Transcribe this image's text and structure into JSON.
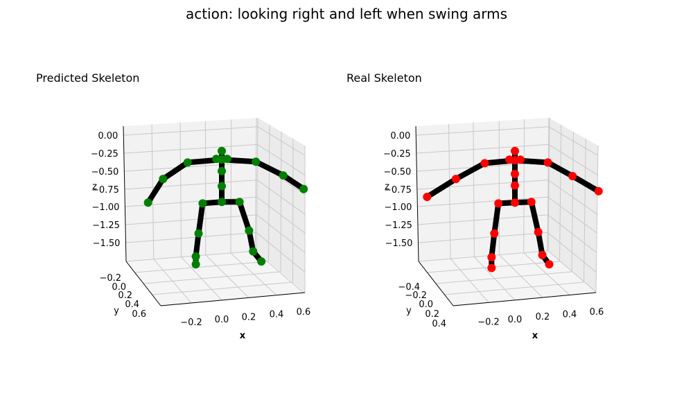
{
  "title": "action: looking right and left when swing arms",
  "chart_data": [
    {
      "type": "scatter",
      "subtype": "3d-skeleton",
      "title": "Predicted Skeleton",
      "xlabel": "x",
      "ylabel": "y",
      "zlabel": "z",
      "x_ticks": [
        "−0.2",
        "0.0",
        "0.2",
        "0.4",
        "0.6"
      ],
      "y_ticks": [
        "−0.2",
        "0.0",
        "0.2",
        "0.4",
        "0.6"
      ],
      "z_ticks": [
        "0.00",
        "−0.25",
        "−0.50",
        "−0.75",
        "−1.00",
        "−1.25",
        "−1.50"
      ],
      "point_color": "#008000",
      "bone_color": "#000000",
      "grid": true,
      "joints": [
        {
          "x": 0.0,
          "y": 0.2,
          "z": -0.22
        },
        {
          "x": 0.0,
          "y": 0.2,
          "z": -0.34
        },
        {
          "x": -0.04,
          "y": 0.2,
          "z": -0.33
        },
        {
          "x": 0.04,
          "y": 0.2,
          "z": -0.33
        },
        {
          "x": 0.0,
          "y": 0.2,
          "z": -0.5
        },
        {
          "x": 0.0,
          "y": 0.2,
          "z": -0.71
        },
        {
          "x": 0.0,
          "y": 0.2,
          "z": -0.93
        },
        {
          "x": -0.25,
          "y": 0.2,
          "z": -0.38
        },
        {
          "x": -0.43,
          "y": 0.2,
          "z": -0.61
        },
        {
          "x": -0.54,
          "y": 0.2,
          "z": -0.94
        },
        {
          "x": 0.25,
          "y": 0.2,
          "z": -0.37
        },
        {
          "x": 0.45,
          "y": 0.2,
          "z": -0.56
        },
        {
          "x": 0.6,
          "y": 0.2,
          "z": -0.75
        },
        {
          "x": -0.14,
          "y": 0.2,
          "z": -0.95
        },
        {
          "x": -0.17,
          "y": 0.2,
          "z": -1.37
        },
        {
          "x": -0.19,
          "y": 0.2,
          "z": -1.69
        },
        {
          "x": -0.19,
          "y": 0.2,
          "z": -1.8
        },
        {
          "x": 0.13,
          "y": 0.2,
          "z": -0.93
        },
        {
          "x": 0.2,
          "y": 0.2,
          "z": -1.33
        },
        {
          "x": 0.23,
          "y": 0.2,
          "z": -1.62
        },
        {
          "x": 0.29,
          "y": 0.2,
          "z": -1.76
        }
      ]
    },
    {
      "type": "scatter",
      "subtype": "3d-skeleton",
      "title": "Real Skeleton",
      "xlabel": "x",
      "ylabel": "y",
      "zlabel": "z",
      "x_ticks": [
        "−0.2",
        "0.0",
        "0.2",
        "0.4",
        "0.6"
      ],
      "y_ticks": [
        "−0.4",
        "−0.2",
        "0.0",
        "0.2",
        "0.4"
      ],
      "z_ticks": [
        "0.00",
        "−0.25",
        "−0.50",
        "−0.75",
        "−1.00",
        "−1.25",
        "−1.50"
      ],
      "point_color": "#ff0000",
      "bone_color": "#000000",
      "grid": true,
      "joints": [
        {
          "x": 0.0,
          "y": 0.1,
          "z": -0.22
        },
        {
          "x": 0.0,
          "y": 0.1,
          "z": -0.35
        },
        {
          "x": -0.04,
          "y": 0.1,
          "z": -0.34
        },
        {
          "x": 0.04,
          "y": 0.1,
          "z": -0.34
        },
        {
          "x": 0.0,
          "y": 0.1,
          "z": -0.54
        },
        {
          "x": 0.0,
          "y": 0.1,
          "z": -0.7
        },
        {
          "x": 0.0,
          "y": 0.1,
          "z": -0.94
        },
        {
          "x": -0.22,
          "y": 0.1,
          "z": -0.39
        },
        {
          "x": -0.43,
          "y": 0.1,
          "z": -0.61
        },
        {
          "x": -0.64,
          "y": 0.1,
          "z": -0.86
        },
        {
          "x": 0.24,
          "y": 0.1,
          "z": -0.38
        },
        {
          "x": 0.42,
          "y": 0.1,
          "z": -0.57
        },
        {
          "x": 0.61,
          "y": 0.1,
          "z": -0.78
        },
        {
          "x": -0.12,
          "y": 0.1,
          "z": -0.95
        },
        {
          "x": -0.15,
          "y": 0.1,
          "z": -1.37
        },
        {
          "x": -0.17,
          "y": 0.1,
          "z": -1.7
        },
        {
          "x": -0.17,
          "y": 0.1,
          "z": -1.85
        },
        {
          "x": 0.12,
          "y": 0.1,
          "z": -0.93
        },
        {
          "x": 0.17,
          "y": 0.1,
          "z": -1.35
        },
        {
          "x": 0.2,
          "y": 0.1,
          "z": -1.67
        },
        {
          "x": 0.25,
          "y": 0.1,
          "z": -1.8
        }
      ]
    }
  ]
}
